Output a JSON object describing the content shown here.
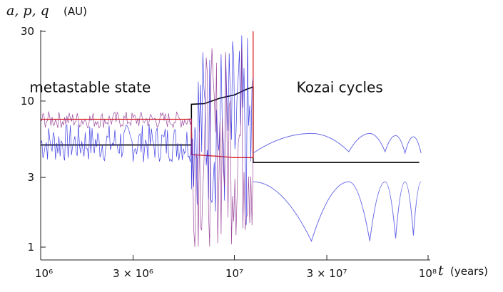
{
  "chart_data": {
    "type": "line",
    "title": "",
    "ylabel": "a, p, q",
    "ylabel_unit": "(AU)",
    "xlabel": "t",
    "xlabel_unit": "(years)",
    "x_scale": "log",
    "y_scale": "log",
    "xlim": [
      1000000,
      100000000
    ],
    "ylim": [
      1,
      30
    ],
    "x_ticks": [
      {
        "value": 1000000,
        "label": "10⁶"
      },
      {
        "value": 3000000,
        "label": "3 × 10⁶"
      },
      {
        "value": 10000000,
        "label": "10⁷"
      },
      {
        "value": 30000000,
        "label": "3 × 10⁷"
      },
      {
        "value": 100000000,
        "label": "10⁸"
      }
    ],
    "y_ticks": [
      {
        "value": 1,
        "label": "1"
      },
      {
        "value": 3,
        "label": "3"
      },
      {
        "value": 10,
        "label": "10"
      },
      {
        "value": 30,
        "label": "30"
      }
    ],
    "annotations": [
      {
        "text": "metastable state",
        "x": 1800000,
        "y": 11.5
      },
      {
        "text": "Kozai cycles",
        "x": 35000000,
        "y": 11.5
      }
    ],
    "colors": {
      "semimajor_axis": "#000000",
      "perihelion_black_regime": "#e02020",
      "aphelion_blue": "#2020e0",
      "purple": "#8a2a8a",
      "kozai_lines": "#6a6ae8"
    },
    "series": [
      {
        "color_key": "semimajor_axis",
        "style": "smooth",
        "points": [
          [
            1000000,
            5.0
          ],
          [
            6000000,
            5.0
          ],
          [
            6000000,
            9.5
          ],
          [
            7000000,
            9.6
          ],
          [
            8500000,
            10.5
          ],
          [
            10000000,
            11.0
          ],
          [
            11500000,
            12.0
          ],
          [
            12500000,
            12.5
          ],
          [
            12500000,
            3.8
          ],
          [
            20000000,
            3.8
          ],
          [
            50000000,
            3.8
          ],
          [
            90000000,
            3.8
          ]
        ]
      },
      {
        "color_key": "perihelion_black_regime",
        "style": "smooth",
        "points": [
          [
            1000000,
            7.5
          ],
          [
            6000000,
            7.5
          ],
          [
            6000000,
            4.3
          ],
          [
            8000000,
            4.2
          ],
          [
            10000000,
            4.1
          ],
          [
            12000000,
            4.1
          ],
          [
            12500000,
            4.1
          ],
          [
            12500000,
            30
          ]
        ]
      },
      {
        "color_key": "aphelion_blue",
        "style": "band",
        "band": [
          [
            1000000,
            3.8,
            7.0
          ],
          [
            6000000,
            3.8,
            7.0
          ],
          [
            6000000,
            2.0,
            25.0
          ],
          [
            12500000,
            1.0,
            30.0
          ]
        ]
      },
      {
        "color_key": "purple",
        "style": "band",
        "band": [
          [
            1000000,
            6.5,
            8.5
          ],
          [
            6000000,
            6.5,
            8.5
          ],
          [
            6000000,
            1.0,
            20.0
          ],
          [
            12500000,
            1.0,
            30.0
          ]
        ]
      },
      {
        "color_key": "kozai_lines",
        "style": "kozai-upper",
        "points": [
          [
            12500000,
            4.4
          ],
          [
            25000000,
            6.0
          ],
          [
            39000000,
            4.5
          ],
          [
            50000000,
            6.0
          ],
          [
            60000000,
            4.5
          ],
          [
            68000000,
            5.8
          ],
          [
            76000000,
            4.4
          ],
          [
            84000000,
            5.7
          ],
          [
            92000000,
            4.4
          ]
        ]
      },
      {
        "color_key": "kozai_lines",
        "style": "kozai-lower",
        "points": [
          [
            12500000,
            2.8
          ],
          [
            25000000,
            1.1
          ],
          [
            39000000,
            2.8
          ],
          [
            50000000,
            1.1
          ],
          [
            60000000,
            2.8
          ],
          [
            68000000,
            1.15
          ],
          [
            76000000,
            2.8
          ],
          [
            84000000,
            1.2
          ],
          [
            92000000,
            2.8
          ]
        ]
      }
    ]
  }
}
